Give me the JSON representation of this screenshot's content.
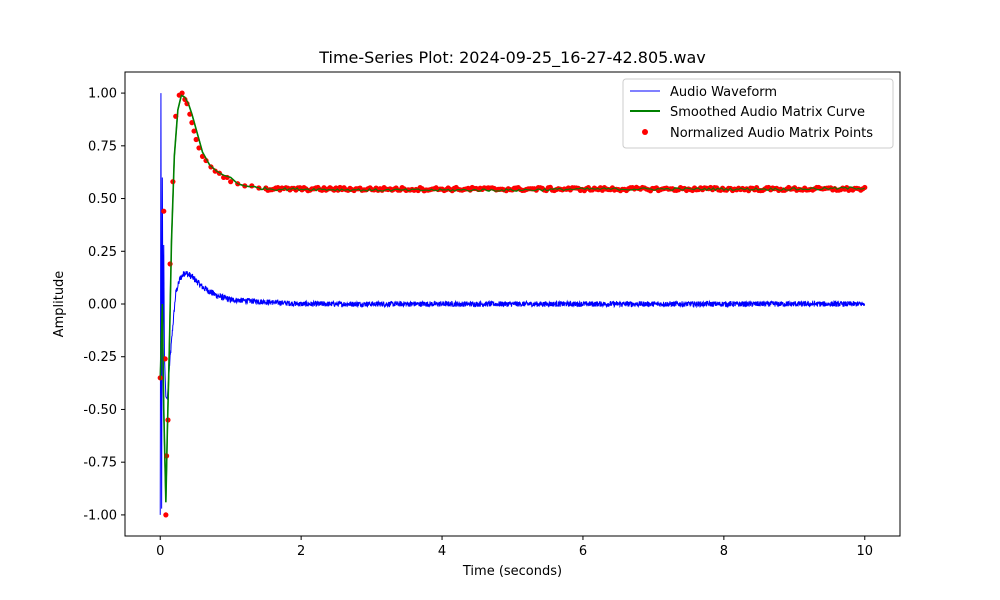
{
  "chart_data": {
    "type": "line",
    "title": "Time-Series Plot: 2024-09-25_16-27-42.805.wav",
    "xlabel": "Time (seconds)",
    "ylabel": "Amplitude",
    "xlim": [
      -0.5,
      10.5
    ],
    "ylim": [
      -1.1,
      1.1
    ],
    "xticks": [
      0,
      2,
      4,
      6,
      8,
      10
    ],
    "yticks": [
      -1.0,
      -0.75,
      -0.5,
      -0.25,
      0.0,
      0.25,
      0.5,
      0.75,
      1.0
    ],
    "grid": false,
    "legend_position": "top-right",
    "series": [
      {
        "name": "Audio Waveform",
        "kind": "line",
        "color": "#0000ff",
        "description_points": {
          "spikes": [
            [
              0.0,
              -1.0
            ],
            [
              0.01,
              1.0
            ],
            [
              0.02,
              -0.97
            ],
            [
              0.03,
              0.6
            ],
            [
              0.04,
              -0.2
            ],
            [
              0.05,
              0.28
            ],
            [
              0.06,
              -0.25
            ],
            [
              0.08,
              -0.44
            ],
            [
              0.1,
              -0.45
            ],
            [
              0.13,
              -0.3
            ]
          ],
          "envelope": [
            [
              0.13,
              -0.3
            ],
            [
              0.18,
              -0.1
            ],
            [
              0.22,
              0.05
            ],
            [
              0.28,
              0.12
            ],
            [
              0.35,
              0.15
            ],
            [
              0.45,
              0.13
            ],
            [
              0.6,
              0.08
            ],
            [
              0.8,
              0.04
            ],
            [
              1.0,
              0.02
            ],
            [
              1.5,
              0.01
            ],
            [
              2.0,
              0.0
            ],
            [
              10.0,
              0.0
            ]
          ],
          "noise_amplitude": 0.013
        }
      },
      {
        "name": "Smoothed Audio Matrix Curve",
        "kind": "line",
        "color": "#008000",
        "x": [
          0.0,
          0.03,
          0.05,
          0.08,
          0.1,
          0.13,
          0.16,
          0.2,
          0.25,
          0.3,
          0.35,
          0.4,
          0.45,
          0.5,
          0.55,
          0.6,
          0.7,
          0.8,
          0.9,
          1.0,
          1.1,
          1.2,
          1.4,
          1.6,
          1.8,
          2.0,
          3.0,
          4.0,
          5.0,
          6.0,
          7.0,
          8.0,
          9.0,
          10.0
        ],
        "y": [
          -0.36,
          0.0,
          -0.5,
          -0.94,
          -0.62,
          -0.2,
          0.3,
          0.7,
          0.92,
          0.99,
          0.98,
          0.95,
          0.9,
          0.84,
          0.78,
          0.72,
          0.66,
          0.63,
          0.61,
          0.6,
          0.57,
          0.56,
          0.55,
          0.545,
          0.545,
          0.545,
          0.54,
          0.54,
          0.54,
          0.545,
          0.545,
          0.545,
          0.545,
          0.55
        ]
      },
      {
        "name": "Normalized Audio Matrix Points",
        "kind": "scatter",
        "color": "#ff0000",
        "x": [
          0.0,
          0.05,
          0.07,
          0.08,
          0.09,
          0.11,
          0.14,
          0.18,
          0.22,
          0.27,
          0.31,
          0.35,
          0.38,
          0.42,
          0.45,
          0.48,
          0.51,
          0.55,
          0.6,
          0.65,
          0.72,
          0.78,
          0.84,
          0.9,
          0.95,
          1.0,
          1.1,
          1.2,
          1.3,
          1.4,
          1.5
        ],
        "y": [
          -0.35,
          0.44,
          -0.26,
          -1.0,
          -0.72,
          -0.55,
          0.19,
          0.58,
          0.89,
          0.99,
          1.0,
          0.97,
          0.95,
          0.9,
          0.86,
          0.82,
          0.78,
          0.74,
          0.7,
          0.68,
          0.65,
          0.63,
          0.62,
          0.6,
          0.6,
          0.58,
          0.57,
          0.56,
          0.56,
          0.55,
          0.55
        ],
        "tail": {
          "x_start": 1.5,
          "x_end": 10.0,
          "count": 300,
          "mean": 0.545,
          "jitter": 0.008
        }
      }
    ]
  }
}
